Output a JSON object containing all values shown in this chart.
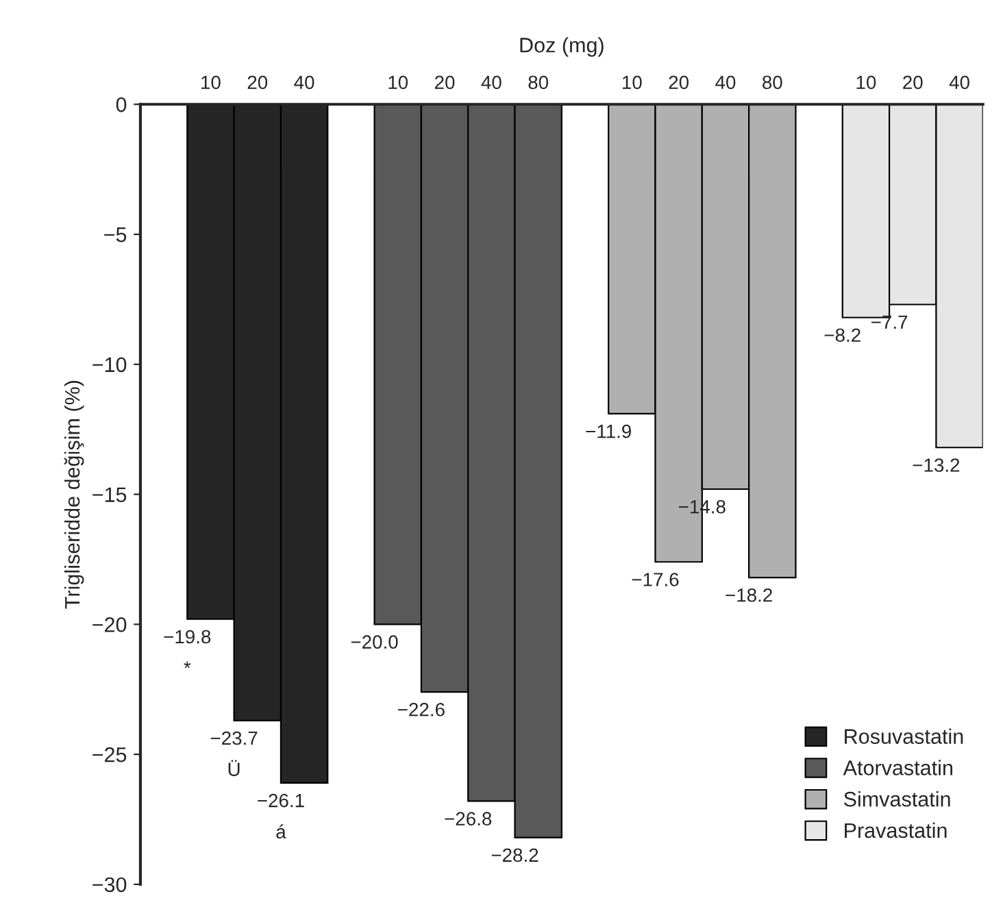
{
  "chart_data": {
    "type": "bar",
    "xlabel": "Doz (mg)",
    "ylabel": "Trigliseridde değişim (%)",
    "categories": [
      "10",
      "20",
      "40",
      null,
      "10",
      "20",
      "40",
      "80",
      null,
      "10",
      "20",
      "40",
      "80",
      null,
      "10",
      "20",
      "40"
    ],
    "series": [
      {
        "name": "Rosuvastatin",
        "color": "#262626",
        "values": [
          -19.8,
          -23.7,
          -26.1,
          null,
          null,
          null,
          null,
          null,
          null,
          null,
          null,
          null,
          null,
          null,
          null,
          null,
          null
        ]
      },
      {
        "name": "Atorvastatin",
        "color": "#595959",
        "values": [
          null,
          null,
          null,
          null,
          -20.0,
          -22.6,
          -26.8,
          -28.2,
          null,
          null,
          null,
          null,
          null,
          null,
          null,
          null,
          null
        ]
      },
      {
        "name": "Simvastatin",
        "color": "#b0b0b0",
        "values": [
          null,
          null,
          null,
          null,
          null,
          null,
          null,
          null,
          null,
          -11.9,
          -17.6,
          -14.8,
          -18.2,
          null,
          null,
          null,
          null
        ]
      },
      {
        "name": "Pravastatin",
        "color": "#e6e6e6",
        "values": [
          null,
          null,
          null,
          null,
          null,
          null,
          null,
          null,
          null,
          null,
          null,
          null,
          null,
          null,
          -8.2,
          -7.7,
          -13.2
        ]
      }
    ],
    "ylim": [
      -30,
      0
    ],
    "yticks": [
      {
        "value": 0,
        "label": "0"
      },
      {
        "value": -5,
        "label": "−5"
      },
      {
        "value": -10,
        "label": "−10"
      },
      {
        "value": -15,
        "label": "−15"
      },
      {
        "value": -20,
        "label": "−20"
      },
      {
        "value": -25,
        "label": "−25"
      },
      {
        "value": -30,
        "label": "−30"
      }
    ],
    "value_labels": [
      "−19.8",
      "−23.7",
      "−26.1",
      null,
      "−20.0",
      "−22.6",
      "−26.8",
      "−28.2",
      null,
      "−11.9",
      "−17.6",
      "−14.8",
      "−18.2",
      null,
      "−8.2",
      "−7.7",
      "−13.2"
    ],
    "annotations": [
      "*",
      "Ü",
      "á"
    ],
    "legend": "bottom right",
    "grid": false
  }
}
